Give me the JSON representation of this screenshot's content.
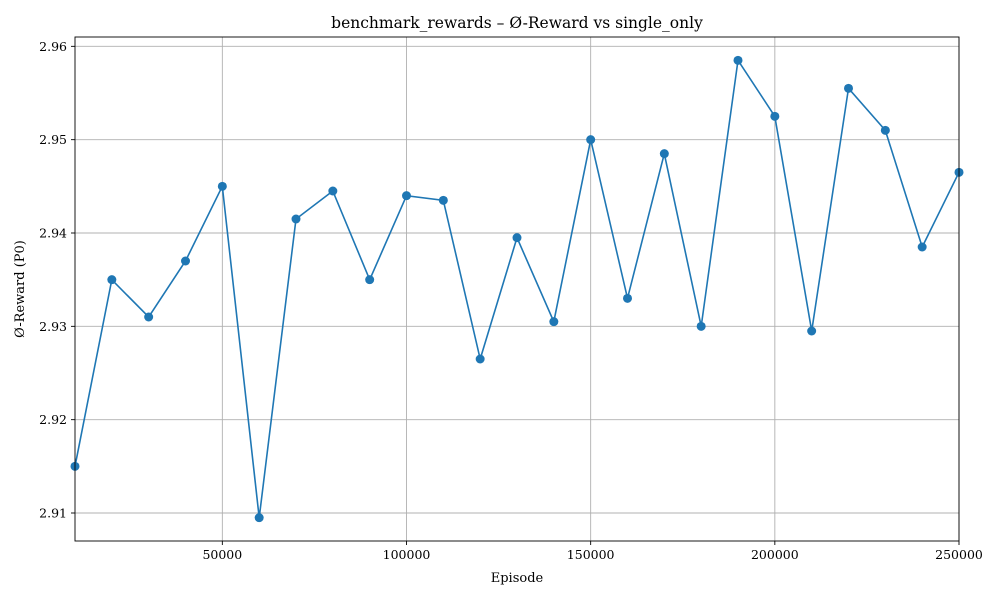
{
  "chart_data": {
    "type": "line",
    "title": "benchmark_rewards – Ø-Reward vs single_only",
    "xlabel": "Episode",
    "ylabel": "Ø-Reward (P0)",
    "xlim": [
      10000,
      250000
    ],
    "ylim": [
      2.907,
      2.961
    ],
    "xticks": [
      50000,
      100000,
      150000,
      200000,
      250000
    ],
    "xtick_labels": [
      "50000",
      "100000",
      "150000",
      "200000",
      "250000"
    ],
    "yticks": [
      2.91,
      2.92,
      2.93,
      2.94,
      2.95,
      2.96
    ],
    "ytick_labels": [
      "2.91",
      "2.92",
      "2.93",
      "2.94",
      "2.95",
      "2.96"
    ],
    "grid": true,
    "series": [
      {
        "color": "#1f77b4",
        "marker": "circle",
        "x": [
          10000,
          20000,
          30000,
          40000,
          50000,
          60000,
          70000,
          80000,
          90000,
          100000,
          110000,
          120000,
          130000,
          140000,
          150000,
          160000,
          170000,
          180000,
          190000,
          200000,
          210000,
          220000,
          230000,
          240000,
          250000
        ],
        "y": [
          2.915,
          2.935,
          2.931,
          2.937,
          2.945,
          2.9095,
          2.9415,
          2.9445,
          2.935,
          2.944,
          2.9435,
          2.9265,
          2.9395,
          2.9305,
          2.95,
          2.933,
          2.9485,
          2.93,
          2.9585,
          2.9525,
          2.9295,
          2.9555,
          2.951,
          2.9385,
          2.9465
        ]
      }
    ]
  }
}
